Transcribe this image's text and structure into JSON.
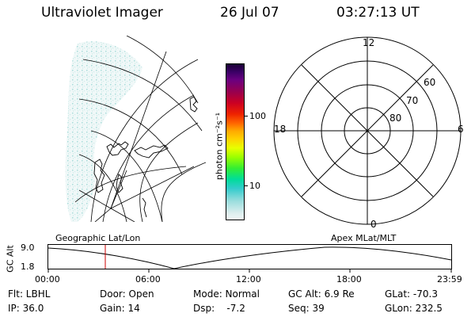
{
  "header": {
    "instrument": "Ultraviolet Imager",
    "date": "26 Jul 07",
    "time": "03:27:13 UT"
  },
  "colorbar": {
    "unit_label": "photon cm⁻²s⁻¹",
    "ticks": [
      "100",
      "10"
    ],
    "colors": [
      "#1a0033",
      "#3b0066",
      "#6a0080",
      "#99004d",
      "#cc0022",
      "#ee2200",
      "#ff6600",
      "#ffaa00",
      "#ffd000",
      "#e8ff00",
      "#99ff00",
      "#33ee33",
      "#00dd99",
      "#33cccc",
      "#99dddd",
      "#ddeeee"
    ]
  },
  "polar": {
    "mlt_labels": {
      "top": "12",
      "right": "6",
      "bottom": "0",
      "left": "18"
    },
    "lat_labels": [
      "60",
      "70",
      "80"
    ]
  },
  "timeline": {
    "left_caption": "Geographic Lat/Lon",
    "right_caption": "Apex MLat/MLT",
    "y_axis_label": "GC Alt",
    "y_ticks": [
      "9.0",
      "1.8"
    ],
    "x_ticks": [
      "00:00",
      "06:00",
      "12:00",
      "18:00",
      "23:59"
    ]
  },
  "status": {
    "flt": "Flt: LBHL",
    "door": "Door: Open",
    "mode": "Mode: Normal",
    "gc_alt": "GC Alt: 6.9 Re",
    "glat": "GLat: -70.3",
    "ip": "IP: 36.0",
    "gain": "Gain: 14",
    "dsp": "Dsp:    -7.2",
    "seq": "Seq: 39",
    "glon": "GLon: 232.5"
  }
}
